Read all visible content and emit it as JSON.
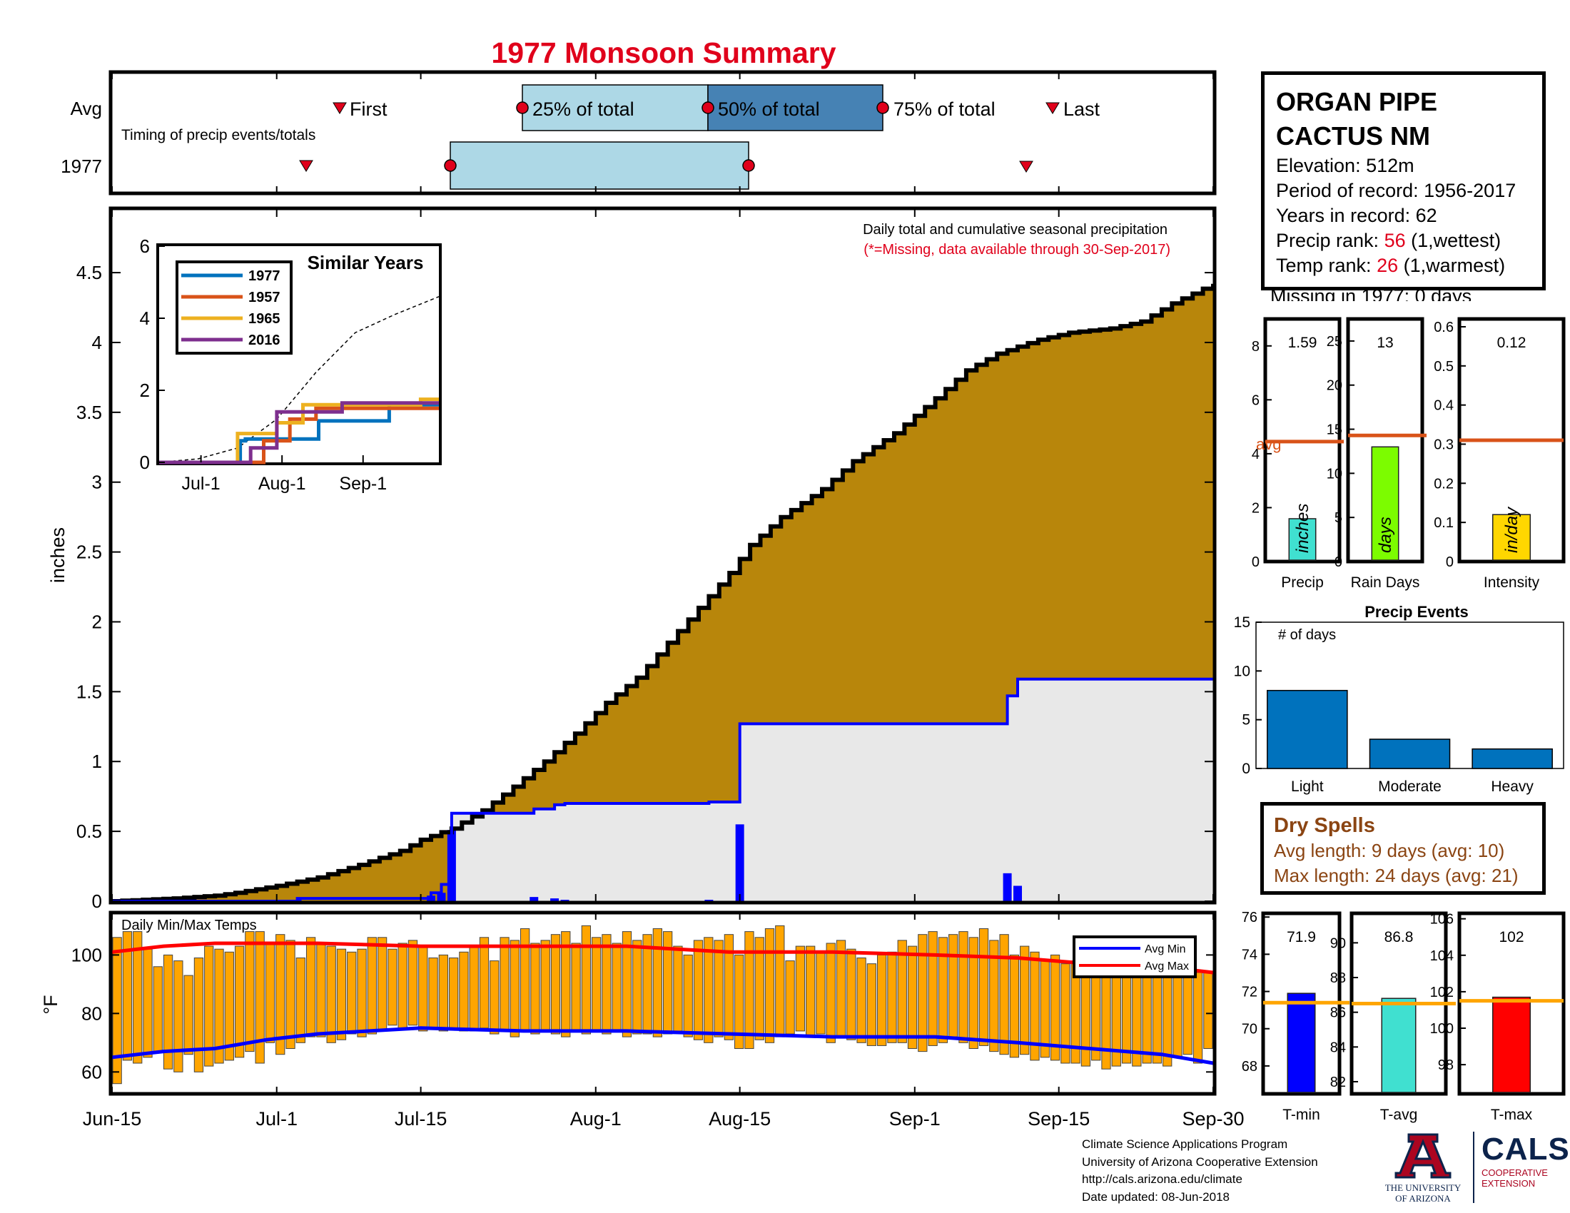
{
  "title": "1977 Monsoon Summary",
  "colors": {
    "title": "#e0001b",
    "cumulative_fill": "#b8860b",
    "avg_fill": "#e8e8e8",
    "daily_bar": "#0000ff",
    "avg_line": "#0000ff",
    "quartile_light": "#add8e6",
    "quartile_dark": "#4682b4",
    "temp_bar": "#ffa500",
    "avg_min": "#0000ff",
    "avg_max": "#ff0000"
  },
  "timing": {
    "label": "Timing of precip events/totals",
    "row_avg": "Avg",
    "row_year": "1977",
    "marker_first": "First",
    "marker_25": "25% of total",
    "marker_50": "50% of total",
    "marker_75": "75% of total",
    "marker_last": "Last",
    "avg": {
      "first": "Jul-4",
      "q25": "Jul-24",
      "q50": "Aug-10",
      "q75": "Aug-26",
      "last": "Sep-14"
    },
    "year": {
      "first": "Jul-3",
      "q25": "Jul-18",
      "q75": "Aug-17",
      "last": "Sep-11"
    }
  },
  "station": {
    "name_line1": "ORGAN PIPE",
    "name_line2": "CACTUS NM",
    "elevation": "Elevation: 512m",
    "period": "Period of record: 1956-2017",
    "years": "Years in record: 62",
    "precip_rank_label": "Precip rank: ",
    "precip_rank_value": "56",
    "precip_rank_note": " (1,wettest)",
    "temp_rank_label": "Temp rank: ",
    "temp_rank_value": "26",
    "temp_rank_note": " (1,warmest)",
    "missing": "Missing in 1977: 0 days"
  },
  "stats": {
    "precip": {
      "label": "Precip",
      "unit": "inches",
      "value": 1.59,
      "value_text": "1.59",
      "avg": 4.45,
      "avg_label": "avg",
      "ylim": [
        0,
        9
      ],
      "ticks": [
        "0",
        "2",
        "4",
        "6",
        "8"
      ],
      "color": "#40e0d0"
    },
    "raindays": {
      "label": "Rain Days",
      "unit": "days",
      "value": 13,
      "value_text": "13",
      "avg": 14.3,
      "ylim": [
        0,
        27.5
      ],
      "ticks": [
        "0",
        "5",
        "10",
        "15",
        "20",
        "25"
      ],
      "color": "#7cfc00"
    },
    "intensity": {
      "label": "Intensity",
      "unit": "in/day",
      "value": 0.12,
      "value_text": "0.12",
      "avg": 0.31,
      "ylim": [
        0,
        0.62
      ],
      "ticks": [
        "0",
        "0.1",
        "0.2",
        "0.3",
        "0.4",
        "0.5",
        "0.6"
      ],
      "color": "#ffd700"
    }
  },
  "events": {
    "title": "Precip Events",
    "ylabel": "# of days",
    "categories": [
      "Light",
      "Moderate",
      "Heavy"
    ],
    "values": [
      8,
      3,
      2
    ],
    "ylim": [
      0,
      15
    ],
    "ticks": [
      "0",
      "5",
      "10",
      "15"
    ],
    "color": "#0072bd"
  },
  "dry": {
    "title": "Dry Spells",
    "avg": "Avg length: 9 days (avg: 10)",
    "max": "Max length: 24 days (avg: 21)"
  },
  "temps_summary": {
    "tmin": {
      "label": "T-min",
      "value": 71.9,
      "value_text": "71.9",
      "avg": 71.4,
      "ylim": [
        66.5,
        76.2
      ],
      "ticks": [
        "68",
        "70",
        "72",
        "74",
        "76"
      ],
      "color": "#0000ff"
    },
    "tavg": {
      "label": "T-avg",
      "value": 86.8,
      "value_text": "86.8",
      "avg": 86.5,
      "ylim": [
        81.3,
        91.7
      ],
      "ticks": [
        "82",
        "84",
        "86",
        "88",
        "90"
      ],
      "color": "#40e0d0"
    },
    "tmax": {
      "label": "T-max",
      "value": 101.7,
      "value_text": "102",
      "avg": 101.5,
      "ylim": [
        96.4,
        106.3
      ],
      "ticks": [
        "98",
        "100",
        "102",
        "104",
        "106"
      ],
      "color": "#ff0000"
    }
  },
  "credits": {
    "line1": "Climate Science Applications Program",
    "line2": "University of Arizona Cooperative Extension",
    "line3": "http://cals.arizona.edu/climate",
    "line4": "Date updated: 08-Jun-2018"
  },
  "logos": {
    "ua_line1": "THE UNIVERSITY",
    "ua_line2": "OF ARIZONA",
    "cals": "CALS",
    "cals_line1": "COOPERATIVE",
    "cals_line2": "EXTENSION"
  },
  "chart_data": [
    {
      "type": "area",
      "name": "precip_main",
      "title": "Daily total and cumulative seasonal precipitation",
      "subtitle": "(*=Missing, data available through 30-Sep-2017)",
      "ylabel": "inches",
      "ylim": [
        0,
        4.95
      ],
      "yticks": [
        "0",
        "0.5",
        "1",
        "1.5",
        "2",
        "2.5",
        "3",
        "3.5",
        "4",
        "4.5"
      ],
      "xticks": [
        {
          "label": "Jun-15",
          "day": 0
        },
        {
          "label": "Jul-1",
          "day": 16
        },
        {
          "label": "Jul-15",
          "day": 30
        },
        {
          "label": "Aug-1",
          "day": 47
        },
        {
          "label": "Aug-15",
          "day": 61
        },
        {
          "label": "Sep-1",
          "day": 78
        },
        {
          "label": "Sep-15",
          "day": 92
        },
        {
          "label": "Sep-30",
          "day": 107
        }
      ],
      "avg_cumulative": [
        [
          0,
          0
        ],
        [
          3,
          0.01
        ],
        [
          6,
          0.02
        ],
        [
          10,
          0.04
        ],
        [
          12,
          0.06
        ],
        [
          16,
          0.11
        ],
        [
          20,
          0.17
        ],
        [
          24,
          0.26
        ],
        [
          28,
          0.36
        ],
        [
          30,
          0.44
        ],
        [
          33,
          0.52
        ],
        [
          36,
          0.65
        ],
        [
          39,
          0.82
        ],
        [
          42,
          1.0
        ],
        [
          45,
          1.2
        ],
        [
          48,
          1.42
        ],
        [
          51,
          1.6
        ],
        [
          54,
          1.85
        ],
        [
          57,
          2.1
        ],
        [
          60,
          2.35
        ],
        [
          62,
          2.55
        ],
        [
          65,
          2.75
        ],
        [
          69,
          2.95
        ],
        [
          72,
          3.15
        ],
        [
          76,
          3.35
        ],
        [
          80,
          3.6
        ],
        [
          83,
          3.8
        ],
        [
          86,
          3.92
        ],
        [
          90,
          4.02
        ],
        [
          93,
          4.07
        ],
        [
          97,
          4.1
        ],
        [
          100,
          4.15
        ],
        [
          103,
          4.28
        ],
        [
          107,
          4.42
        ]
      ],
      "year_cumulative": [
        [
          0,
          0
        ],
        [
          18,
          0
        ],
        [
          18,
          0.02
        ],
        [
          31,
          0.02
        ],
        [
          31,
          0.06
        ],
        [
          32,
          0.06
        ],
        [
          32,
          0.12
        ],
        [
          33,
          0.12
        ],
        [
          33,
          0.63
        ],
        [
          41,
          0.63
        ],
        [
          41,
          0.66
        ],
        [
          43,
          0.66
        ],
        [
          43,
          0.69
        ],
        [
          44,
          0.69
        ],
        [
          44,
          0.7
        ],
        [
          58,
          0.7
        ],
        [
          58,
          0.71
        ],
        [
          61,
          0.71
        ],
        [
          61,
          1.27
        ],
        [
          87,
          1.27
        ],
        [
          87,
          1.47
        ],
        [
          88,
          1.47
        ],
        [
          88,
          1.59
        ],
        [
          107,
          1.59
        ]
      ],
      "year_daily": [
        [
          18,
          0.01
        ],
        [
          31,
          0.04
        ],
        [
          32,
          0.06
        ],
        [
          33,
          0.51
        ],
        [
          41,
          0.03
        ],
        [
          43,
          0.02
        ],
        [
          44,
          0.01
        ],
        [
          58,
          0.01
        ],
        [
          61,
          0.55
        ],
        [
          87,
          0.2
        ],
        [
          88,
          0.11
        ]
      ]
    },
    {
      "type": "line",
      "name": "similar_years",
      "title": "Similar Years",
      "ylim": [
        0,
        6
      ],
      "yticks": [
        "0",
        "2",
        "4",
        "6"
      ],
      "xticks": [
        {
          "label": "Jul-1",
          "day": 16
        },
        {
          "label": "Aug-1",
          "day": 47
        },
        {
          "label": "Sep-1",
          "day": 78
        }
      ],
      "series": [
        {
          "name": "1977",
          "color": "#0072bd",
          "values": [
            [
              0,
              0
            ],
            [
              31,
              0
            ],
            [
              31,
              0.6
            ],
            [
              33,
              0.6
            ],
            [
              33,
              0.65
            ],
            [
              61,
              0.65
            ],
            [
              61,
              1.15
            ],
            [
              88,
              1.15
            ],
            [
              88,
              1.6
            ],
            [
              107,
              1.6
            ]
          ]
        },
        {
          "name": "1957",
          "color": "#d95319",
          "values": [
            [
              0,
              0
            ],
            [
              40,
              0
            ],
            [
              40,
              0.6
            ],
            [
              50,
              0.6
            ],
            [
              50,
              1.2
            ],
            [
              60,
              1.2
            ],
            [
              60,
              1.5
            ],
            [
              107,
              1.5
            ]
          ]
        },
        {
          "name": "1965",
          "color": "#edb120",
          "values": [
            [
              0,
              0
            ],
            [
              30,
              0
            ],
            [
              30,
              0.8
            ],
            [
              45,
              0.8
            ],
            [
              45,
              1.1
            ],
            [
              55,
              1.1
            ],
            [
              55,
              1.6
            ],
            [
              100,
              1.6
            ],
            [
              100,
              1.75
            ],
            [
              107,
              1.75
            ]
          ]
        },
        {
          "name": "2016",
          "color": "#7e2f8e",
          "values": [
            [
              0,
              0
            ],
            [
              35,
              0
            ],
            [
              35,
              0.4
            ],
            [
              45,
              0.4
            ],
            [
              45,
              1.4
            ],
            [
              70,
              1.4
            ],
            [
              70,
              1.65
            ],
            [
              107,
              1.65
            ]
          ]
        }
      ],
      "avg": [
        [
          0,
          0
        ],
        [
          15,
          0.1
        ],
        [
          30,
          0.4
        ],
        [
          45,
          1.2
        ],
        [
          60,
          2.5
        ],
        [
          75,
          3.6
        ],
        [
          90,
          4.1
        ],
        [
          107,
          4.6
        ]
      ]
    },
    {
      "type": "bar",
      "name": "daily_temps",
      "title": "Daily Min/Max Temps",
      "ylabel": "°F",
      "ylim": [
        53,
        114
      ],
      "yticks": [
        "60",
        "80",
        "100"
      ],
      "legend": [
        "Avg Min",
        "Avg Max"
      ],
      "legend_position": "top-right",
      "tmin": [
        56,
        64,
        63,
        65,
        67,
        61,
        60,
        66,
        60,
        62,
        63,
        64,
        65,
        67,
        63,
        70,
        66,
        68,
        70,
        72,
        72,
        70,
        71,
        73,
        72,
        73,
        74,
        76,
        75,
        76,
        74,
        75,
        74,
        75,
        74,
        74,
        75,
        73,
        74,
        72,
        74,
        73,
        74,
        73,
        72,
        74,
        73,
        74,
        73,
        74,
        72,
        73,
        73,
        72,
        73,
        74,
        72,
        71,
        70,
        72,
        71,
        68,
        68,
        71,
        70,
        72,
        73,
        74,
        72,
        73,
        70,
        72,
        71,
        70,
        69,
        69,
        70,
        70,
        68,
        67,
        69,
        70,
        72,
        70,
        68,
        69,
        67,
        66,
        65,
        66,
        64,
        65,
        64,
        63,
        63,
        62,
        64,
        61,
        62,
        63,
        62,
        63,
        63,
        62,
        65,
        66,
        63,
        68
      ],
      "tmax": [
        106,
        108,
        108,
        102,
        96,
        100,
        98,
        93,
        99,
        103,
        102,
        101,
        103,
        108,
        108,
        104,
        107,
        105,
        99,
        106,
        104,
        103,
        102,
        101,
        102,
        106,
        106,
        102,
        104,
        105,
        103,
        99,
        100,
        99,
        101,
        103,
        106,
        98,
        106,
        105,
        109,
        104,
        105,
        107,
        108,
        104,
        110,
        106,
        107,
        104,
        108,
        105,
        107,
        109,
        108,
        103,
        100,
        105,
        106,
        105,
        107,
        100,
        108,
        106,
        109,
        110,
        98,
        103,
        103,
        101,
        104,
        105,
        102,
        99,
        97,
        100,
        101,
        105,
        103,
        107,
        108,
        106,
        107,
        108,
        106,
        109,
        105,
        107,
        100,
        103,
        101,
        98,
        100,
        97,
        98,
        98,
        96,
        98,
        99,
        100,
        98,
        96,
        97,
        99,
        97,
        94,
        94,
        94
      ],
      "avg_min": [
        [
          0,
          65
        ],
        [
          5,
          67
        ],
        [
          10,
          68
        ],
        [
          15,
          71
        ],
        [
          20,
          73
        ],
        [
          25,
          74
        ],
        [
          30,
          75
        ],
        [
          40,
          74
        ],
        [
          50,
          74
        ],
        [
          60,
          73
        ],
        [
          70,
          72
        ],
        [
          80,
          72
        ],
        [
          88,
          70
        ],
        [
          95,
          68
        ],
        [
          102,
          66
        ],
        [
          107,
          63
        ]
      ],
      "avg_max": [
        [
          0,
          101
        ],
        [
          5,
          103
        ],
        [
          10,
          104
        ],
        [
          15,
          104
        ],
        [
          20,
          104
        ],
        [
          30,
          103
        ],
        [
          40,
          103
        ],
        [
          50,
          103
        ],
        [
          55,
          102
        ],
        [
          60,
          101
        ],
        [
          70,
          101
        ],
        [
          80,
          100
        ],
        [
          88,
          99
        ],
        [
          95,
          97
        ],
        [
          102,
          96
        ],
        [
          107,
          94
        ]
      ]
    }
  ]
}
